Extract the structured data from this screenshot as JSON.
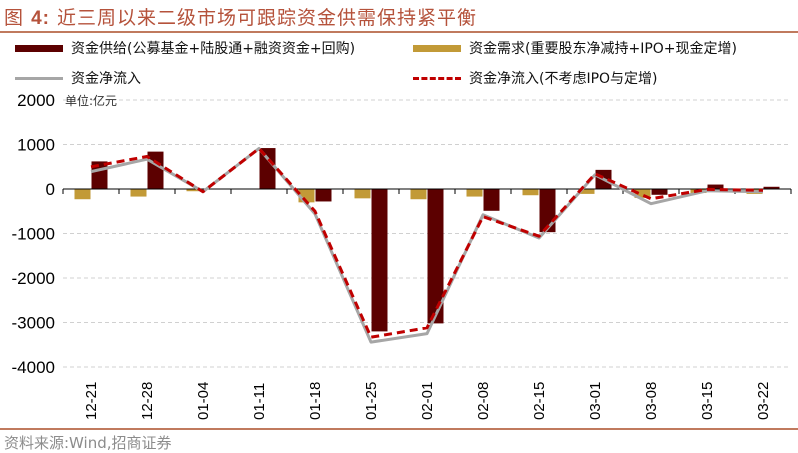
{
  "header": {
    "title_prefix": "图",
    "title_number": "4:",
    "title_text": "近三周以来二级市场可跟踪资金供需保持紧平衡"
  },
  "legend": {
    "items": [
      {
        "label": "资金供给(公募基金+陆股通+融资资金+回购)",
        "type": "bar",
        "color": "#5c0000"
      },
      {
        "label": "资金需求(重要股东净减持+IPO+现金定增)",
        "type": "bar",
        "color": "#c29a37"
      },
      {
        "label": "资金净流入",
        "type": "line",
        "color": "#a6a6a6"
      },
      {
        "label": "资金净流入(不考虑IPO与定增)",
        "type": "dashed-line",
        "color": "#c00000"
      }
    ]
  },
  "unit_label": "单位:亿元",
  "footer": {
    "source": "资料来源:Wind,招商证券"
  },
  "chart_data": {
    "type": "bar",
    "title": "近三周以来二级市场可跟踪资金供需保持紧平衡",
    "xlabel": "",
    "ylabel": "",
    "unit": "亿元",
    "ylim": [
      -4000,
      2000
    ],
    "yticks": [
      2000,
      1000,
      0,
      -1000,
      -2000,
      -3000,
      -4000
    ],
    "grid": true,
    "legend_position": "top",
    "categories": [
      "12-21",
      "12-28",
      "01-04",
      "01-11",
      "01-18",
      "01-25",
      "02-01",
      "02-08",
      "02-15",
      "03-01",
      "03-08",
      "03-15",
      "03-22"
    ],
    "series": [
      {
        "name": "资金供给(公募基金+陆股通+融资资金+回购)",
        "type": "bar",
        "color": "#5c0000",
        "values": [
          620,
          840,
          0,
          920,
          -280,
          -3200,
          -3020,
          -490,
          -970,
          430,
          -130,
          100,
          50
        ]
      },
      {
        "name": "资金需求(重要股东净减持+IPO+现金定增)",
        "type": "bar",
        "color": "#c29a37",
        "values": [
          -230,
          -170,
          -50,
          -10,
          -300,
          -210,
          -230,
          -170,
          -140,
          -110,
          -200,
          -90,
          -110
        ]
      },
      {
        "name": "资金净流入",
        "type": "line",
        "color": "#a6a6a6",
        "values": [
          390,
          670,
          -60,
          910,
          -560,
          -3440,
          -3250,
          -580,
          -1100,
          320,
          -330,
          -40,
          -60
        ]
      },
      {
        "name": "资金净流入(不考虑IPO与定增)",
        "type": "line",
        "dash": true,
        "color": "#c00000",
        "values": [
          500,
          730,
          -60,
          910,
          -500,
          -3330,
          -3120,
          -620,
          -1060,
          340,
          -220,
          -10,
          -30
        ]
      }
    ]
  }
}
